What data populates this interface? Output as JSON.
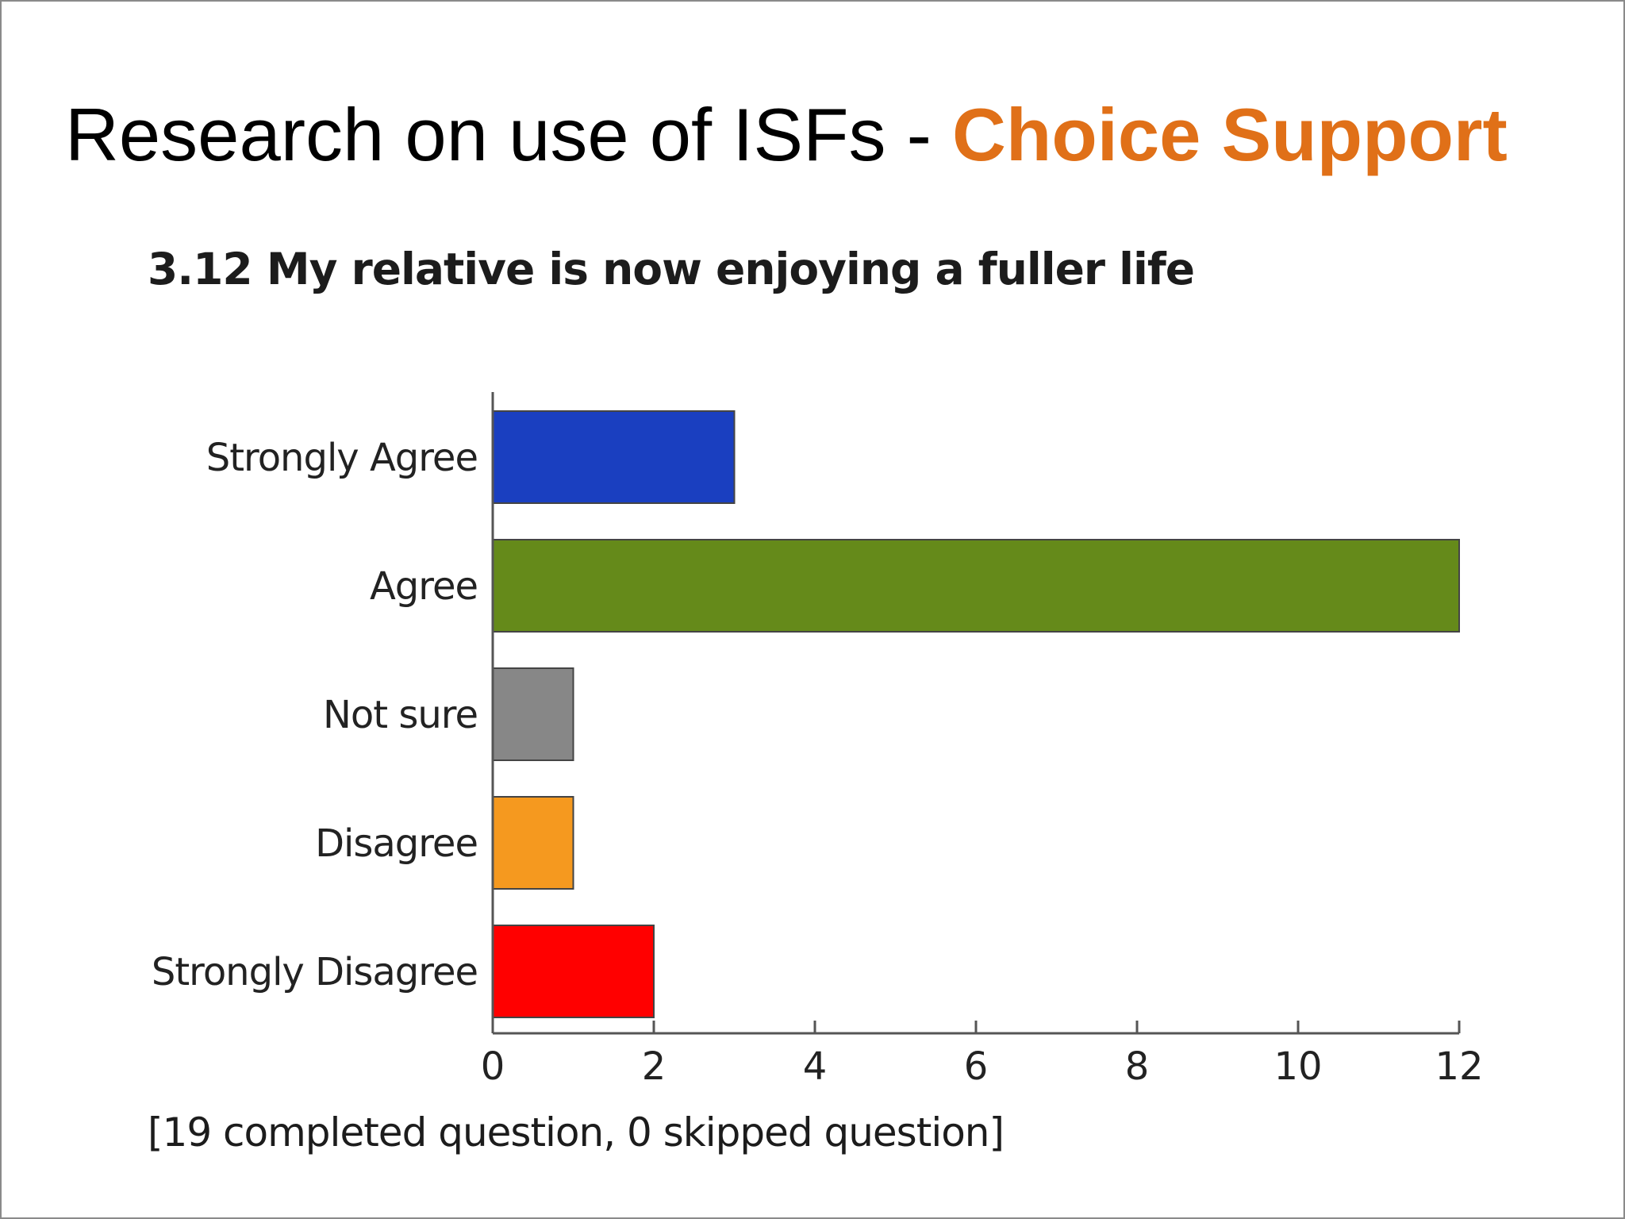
{
  "slide": {
    "title_prefix": "Research on use of ISFs - ",
    "title_accent": "Choice Support",
    "accent_color": "#e07018"
  },
  "chart_data": {
    "type": "bar",
    "orientation": "horizontal",
    "title": "3.12 My relative is now enjoying a fuller life",
    "categories": [
      "Strongly Agree",
      "Agree",
      "Not sure",
      "Disagree",
      "Strongly Disagree"
    ],
    "values": [
      3,
      12,
      1,
      1,
      2
    ],
    "colors": [
      "#1a3fc0",
      "#658a1a",
      "#878787",
      "#f5991f",
      "#ff0000"
    ],
    "xlabel": "",
    "ylabel": "",
    "xlim": [
      0,
      12
    ],
    "xticks": [
      0,
      2,
      4,
      6,
      8,
      10,
      12
    ],
    "grid": false,
    "legend": "none"
  },
  "footnote": "[19 completed question, 0 skipped question]"
}
